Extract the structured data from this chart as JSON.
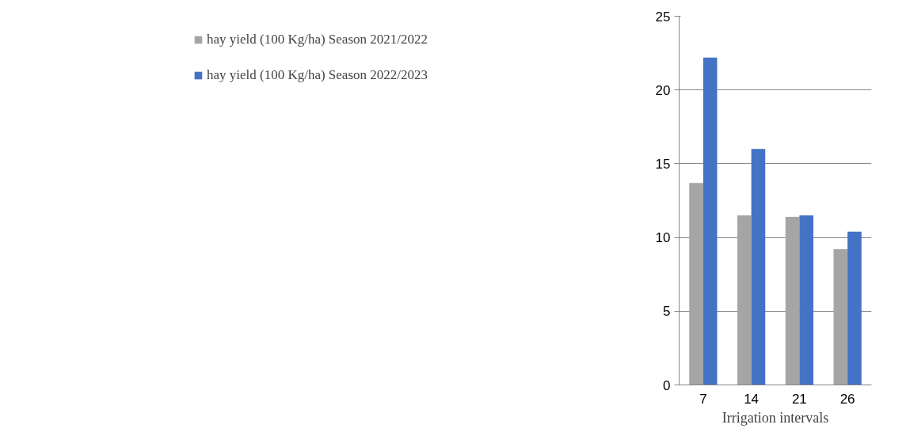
{
  "chart_data": {
    "type": "bar",
    "xlabel": "Irrigation intervals",
    "categories": [
      "7",
      "14",
      "21",
      "26"
    ],
    "series": [
      {
        "name": "hay yield (100 Kg/ha) Season 2021/2022",
        "color": "#a5a5a5",
        "values": [
          13.7,
          11.5,
          11.4,
          9.2
        ]
      },
      {
        "name": "hay yield (100 Kg/ha) Season 2022/2023",
        "color": "#4472c4",
        "values": [
          22.2,
          16.0,
          11.5,
          10.4
        ]
      }
    ],
    "ylim": [
      0,
      25
    ],
    "yticks": [
      0,
      5,
      10,
      15,
      20,
      25
    ],
    "grid": "y",
    "legend": "left"
  }
}
